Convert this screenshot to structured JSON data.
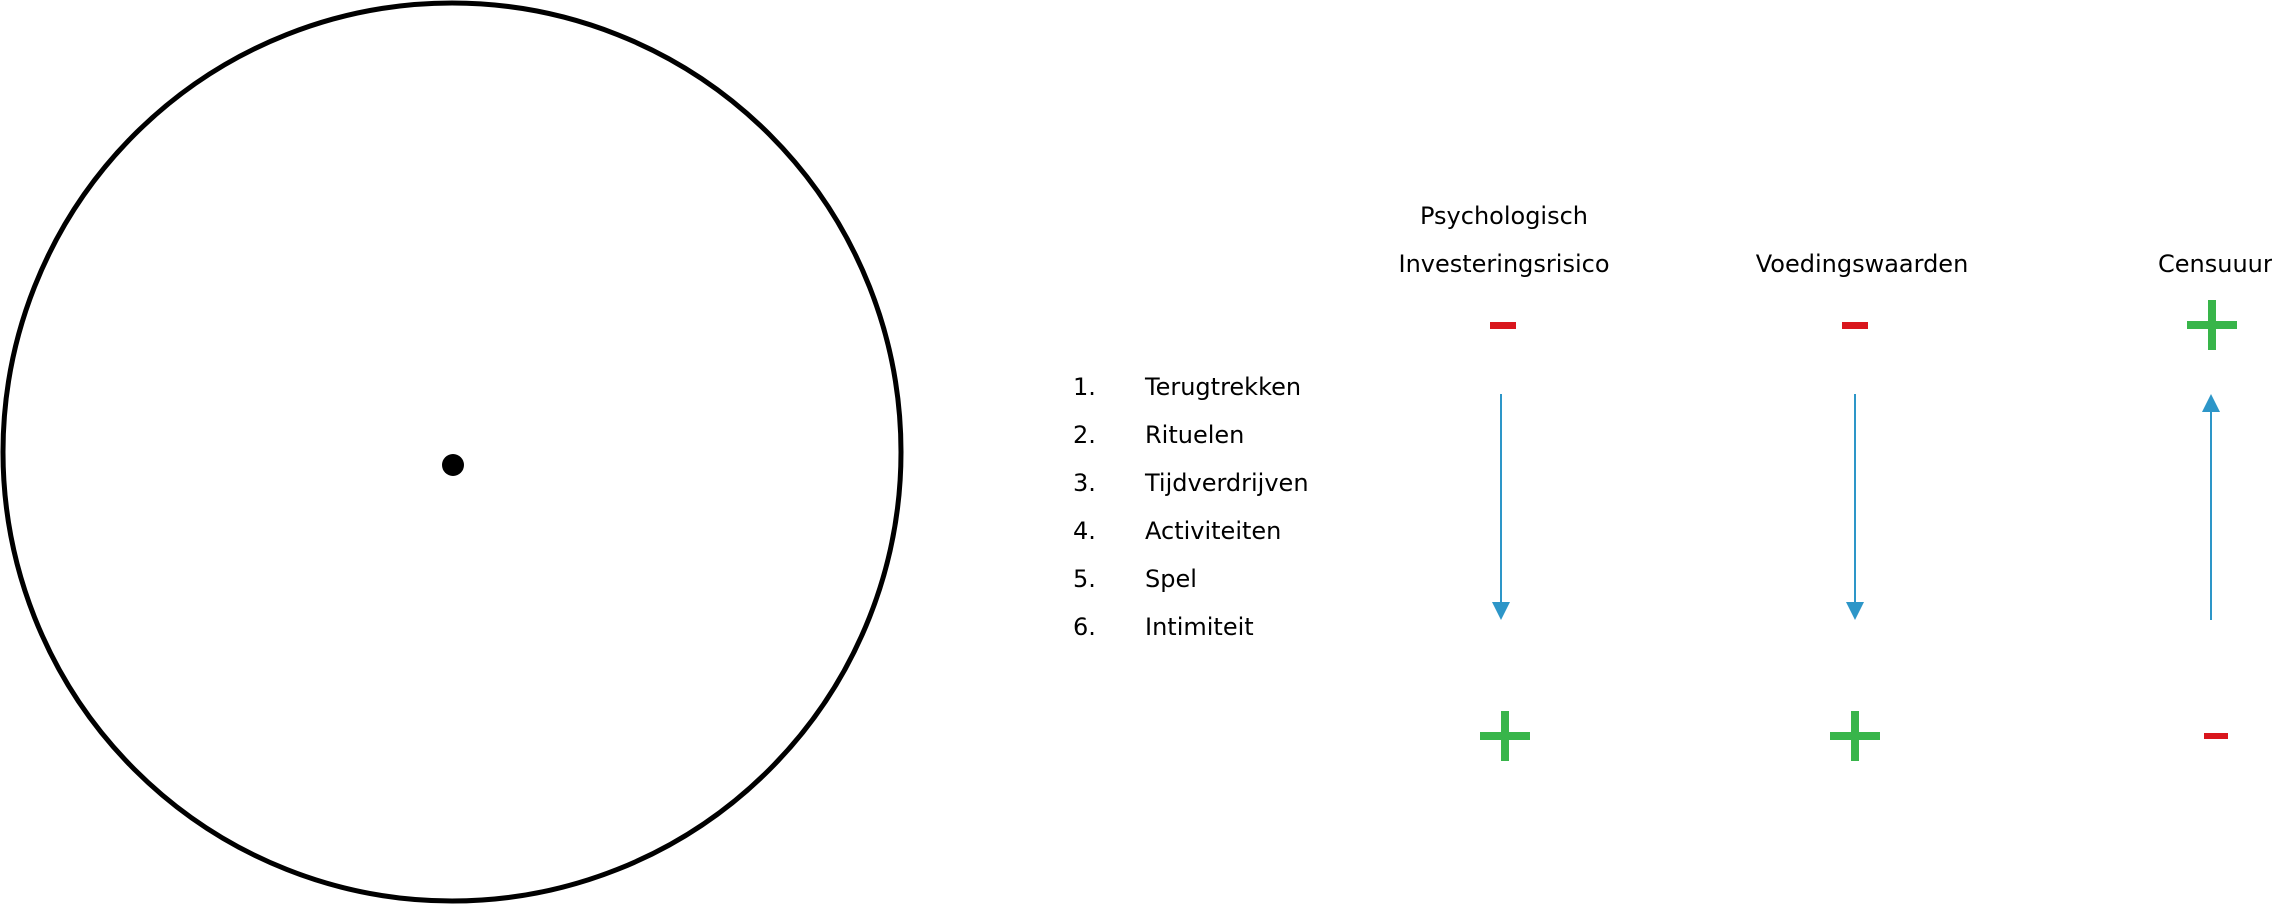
{
  "colors": {
    "outline": "#000000",
    "minus": "#d9161d",
    "plus": "#38b54a",
    "arrow": "#2d96c8"
  },
  "columns": [
    {
      "title_lines": [
        "Psychologisch",
        "Investeringsrisico"
      ],
      "top_sign": "minus-icon",
      "bottom_sign": "plus-icon",
      "arrow_direction": "down"
    },
    {
      "title_lines": [
        "Voedingswaarden"
      ],
      "top_sign": "minus-icon",
      "bottom_sign": "plus-icon",
      "arrow_direction": "down"
    },
    {
      "title_lines": [
        "Censuuur"
      ],
      "top_sign": "plus-icon",
      "bottom_sign": "minus-icon",
      "arrow_direction": "up"
    }
  ],
  "list": [
    {
      "num": "1.",
      "label": "Terugtrekken"
    },
    {
      "num": "2.",
      "label": "Rituelen"
    },
    {
      "num": "3.",
      "label": "Tijdverdrijven"
    },
    {
      "num": "4.",
      "label": "Activiteiten"
    },
    {
      "num": "5.",
      "label": "Spel"
    },
    {
      "num": "6.",
      "label": "Intimiteit"
    }
  ]
}
